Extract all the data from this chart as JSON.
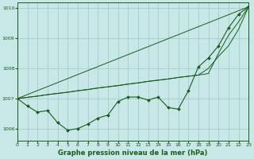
{
  "title": "Graphe pression niveau de la mer (hPa)",
  "background_color": "#c8e8e8",
  "grid_color": "#a0c8c8",
  "line_color": "#1a5c1a",
  "xlim": [
    0,
    23
  ],
  "ylim": [
    1005.6,
    1010.2
  ],
  "xticks": [
    0,
    1,
    2,
    3,
    4,
    5,
    6,
    7,
    8,
    9,
    10,
    11,
    12,
    13,
    14,
    15,
    16,
    17,
    18,
    19,
    20,
    21,
    22,
    23
  ],
  "yticks": [
    1006,
    1007,
    1008,
    1009,
    1010
  ],
  "s_measured": [
    1007.0,
    1006.75,
    1006.55,
    1006.6,
    1006.2,
    1005.95,
    1006.0,
    1006.15,
    1006.35,
    1006.45,
    1006.9,
    1007.05,
    1007.05,
    1006.95,
    1007.05,
    1006.7,
    1006.65,
    1007.25,
    1008.05,
    1008.35,
    1008.75,
    1009.35,
    1009.8,
    1010.05
  ],
  "s_line1": [
    1007.0,
    1007.04,
    1007.08,
    1007.13,
    1007.17,
    1007.21,
    1007.26,
    1007.3,
    1007.35,
    1007.39,
    1007.43,
    1007.48,
    1007.52,
    1007.57,
    1007.61,
    1007.65,
    1007.7,
    1007.74,
    1007.78,
    1007.83,
    1008.5,
    1009.1,
    1009.55,
    1010.05
  ],
  "s_line2": [
    1007.0,
    1007.04,
    1007.08,
    1007.13,
    1007.17,
    1007.21,
    1007.26,
    1007.3,
    1007.35,
    1007.39,
    1007.43,
    1007.48,
    1007.52,
    1007.57,
    1007.61,
    1007.65,
    1007.7,
    1007.74,
    1007.78,
    1008.0,
    1008.4,
    1008.75,
    1009.3,
    1010.05
  ],
  "s_line3_x": [
    0,
    23
  ],
  "s_line3_y": [
    1007.0,
    1010.05
  ]
}
